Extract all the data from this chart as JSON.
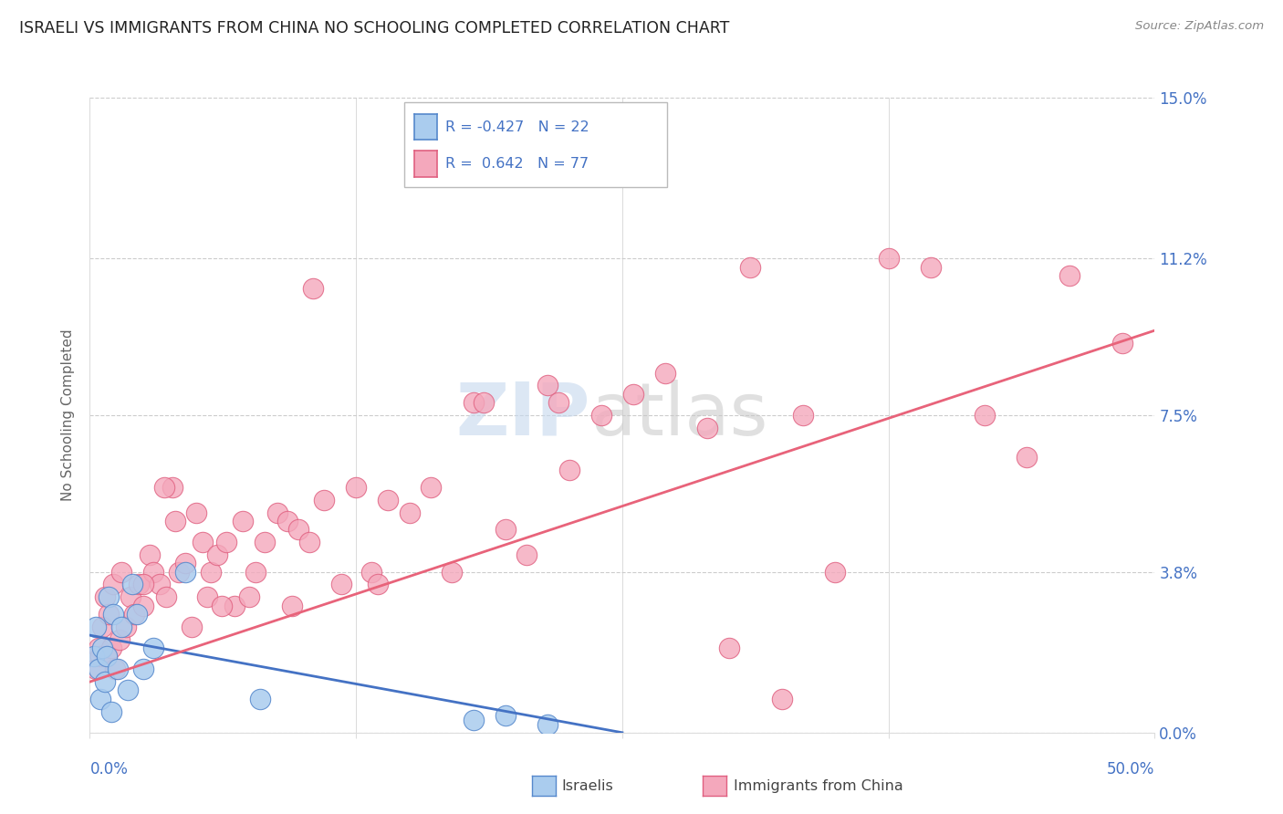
{
  "title": "ISRAELI VS IMMIGRANTS FROM CHINA NO SCHOOLING COMPLETED CORRELATION CHART",
  "source": "Source: ZipAtlas.com",
  "ylabel": "No Schooling Completed",
  "ytick_values": [
    0.0,
    3.8,
    7.5,
    11.2,
    15.0
  ],
  "ytick_labels": [
    "0.0%",
    "3.8%",
    "7.5%",
    "11.2%",
    "15.0%"
  ],
  "xmin": 0.0,
  "xmax": 50.0,
  "ymin": 0.0,
  "ymax": 15.0,
  "color_israeli": "#aaccee",
  "color_china": "#f4a8bc",
  "color_israeli_edge": "#5588cc",
  "color_china_edge": "#e06080",
  "color_israeli_line": "#4472c4",
  "color_china_line": "#e8637a",
  "color_axis_blue": "#4472c4",
  "color_grid": "#cccccc",
  "color_title": "#222222",
  "color_source": "#888888",
  "color_ylabel": "#666666",
  "watermark_zip_color": "#c5d8ee",
  "watermark_atlas_color": "#c8c8c8",
  "israelis_x": [
    0.2,
    0.3,
    0.4,
    0.5,
    0.6,
    0.7,
    0.8,
    0.9,
    1.0,
    1.1,
    1.3,
    1.5,
    1.8,
    2.0,
    2.2,
    2.5,
    3.0,
    4.5,
    8.0,
    18.0,
    19.5,
    21.5
  ],
  "israelis_y": [
    1.8,
    2.5,
    1.5,
    0.8,
    2.0,
    1.2,
    1.8,
    3.2,
    0.5,
    2.8,
    1.5,
    2.5,
    1.0,
    3.5,
    2.8,
    1.5,
    2.0,
    3.8,
    0.8,
    0.3,
    0.4,
    0.2
  ],
  "china_x": [
    0.3,
    0.4,
    0.5,
    0.6,
    0.7,
    0.8,
    0.9,
    1.0,
    1.1,
    1.2,
    1.4,
    1.5,
    1.7,
    1.9,
    2.1,
    2.3,
    2.5,
    2.8,
    3.0,
    3.3,
    3.6,
    3.9,
    4.2,
    4.5,
    5.0,
    5.3,
    5.7,
    6.0,
    6.4,
    6.8,
    7.2,
    7.8,
    8.2,
    8.8,
    9.3,
    9.8,
    10.3,
    11.0,
    11.8,
    12.5,
    13.2,
    14.0,
    15.0,
    16.0,
    17.0,
    18.0,
    19.5,
    20.5,
    21.5,
    22.5,
    24.0,
    25.5,
    27.0,
    29.0,
    31.0,
    33.5,
    35.0,
    37.5,
    39.5,
    42.0,
    44.0,
    46.0,
    48.5,
    30.0,
    32.5,
    9.5,
    13.5,
    4.8,
    18.5,
    22.0,
    5.5,
    7.5,
    10.5,
    3.5,
    6.2,
    4.0,
    2.5
  ],
  "china_y": [
    1.5,
    2.0,
    1.8,
    2.5,
    3.2,
    1.8,
    2.8,
    2.0,
    3.5,
    1.5,
    2.2,
    3.8,
    2.5,
    3.2,
    2.8,
    3.5,
    3.0,
    4.2,
    3.8,
    3.5,
    3.2,
    5.8,
    3.8,
    4.0,
    5.2,
    4.5,
    3.8,
    4.2,
    4.5,
    3.0,
    5.0,
    3.8,
    4.5,
    5.2,
    5.0,
    4.8,
    4.5,
    5.5,
    3.5,
    5.8,
    3.8,
    5.5,
    5.2,
    5.8,
    3.8,
    7.8,
    4.8,
    4.2,
    8.2,
    6.2,
    7.5,
    8.0,
    8.5,
    7.2,
    11.0,
    7.5,
    3.8,
    11.2,
    11.0,
    7.5,
    6.5,
    10.8,
    9.2,
    2.0,
    0.8,
    3.0,
    3.5,
    2.5,
    7.8,
    7.8,
    3.2,
    3.2,
    10.5,
    5.8,
    3.0,
    5.0,
    3.5
  ],
  "legend_text1": "R = -0.427   N = 22",
  "legend_text2": "R =  0.642   N = 77",
  "bottom_label1": "Israelis",
  "bottom_label2": "Immigrants from China",
  "isr_trend_x": [
    0.0,
    25.0
  ],
  "isr_trend_y": [
    2.3,
    0.0
  ],
  "chn_trend_x": [
    0.0,
    50.0
  ],
  "chn_trend_y": [
    1.2,
    9.5
  ]
}
